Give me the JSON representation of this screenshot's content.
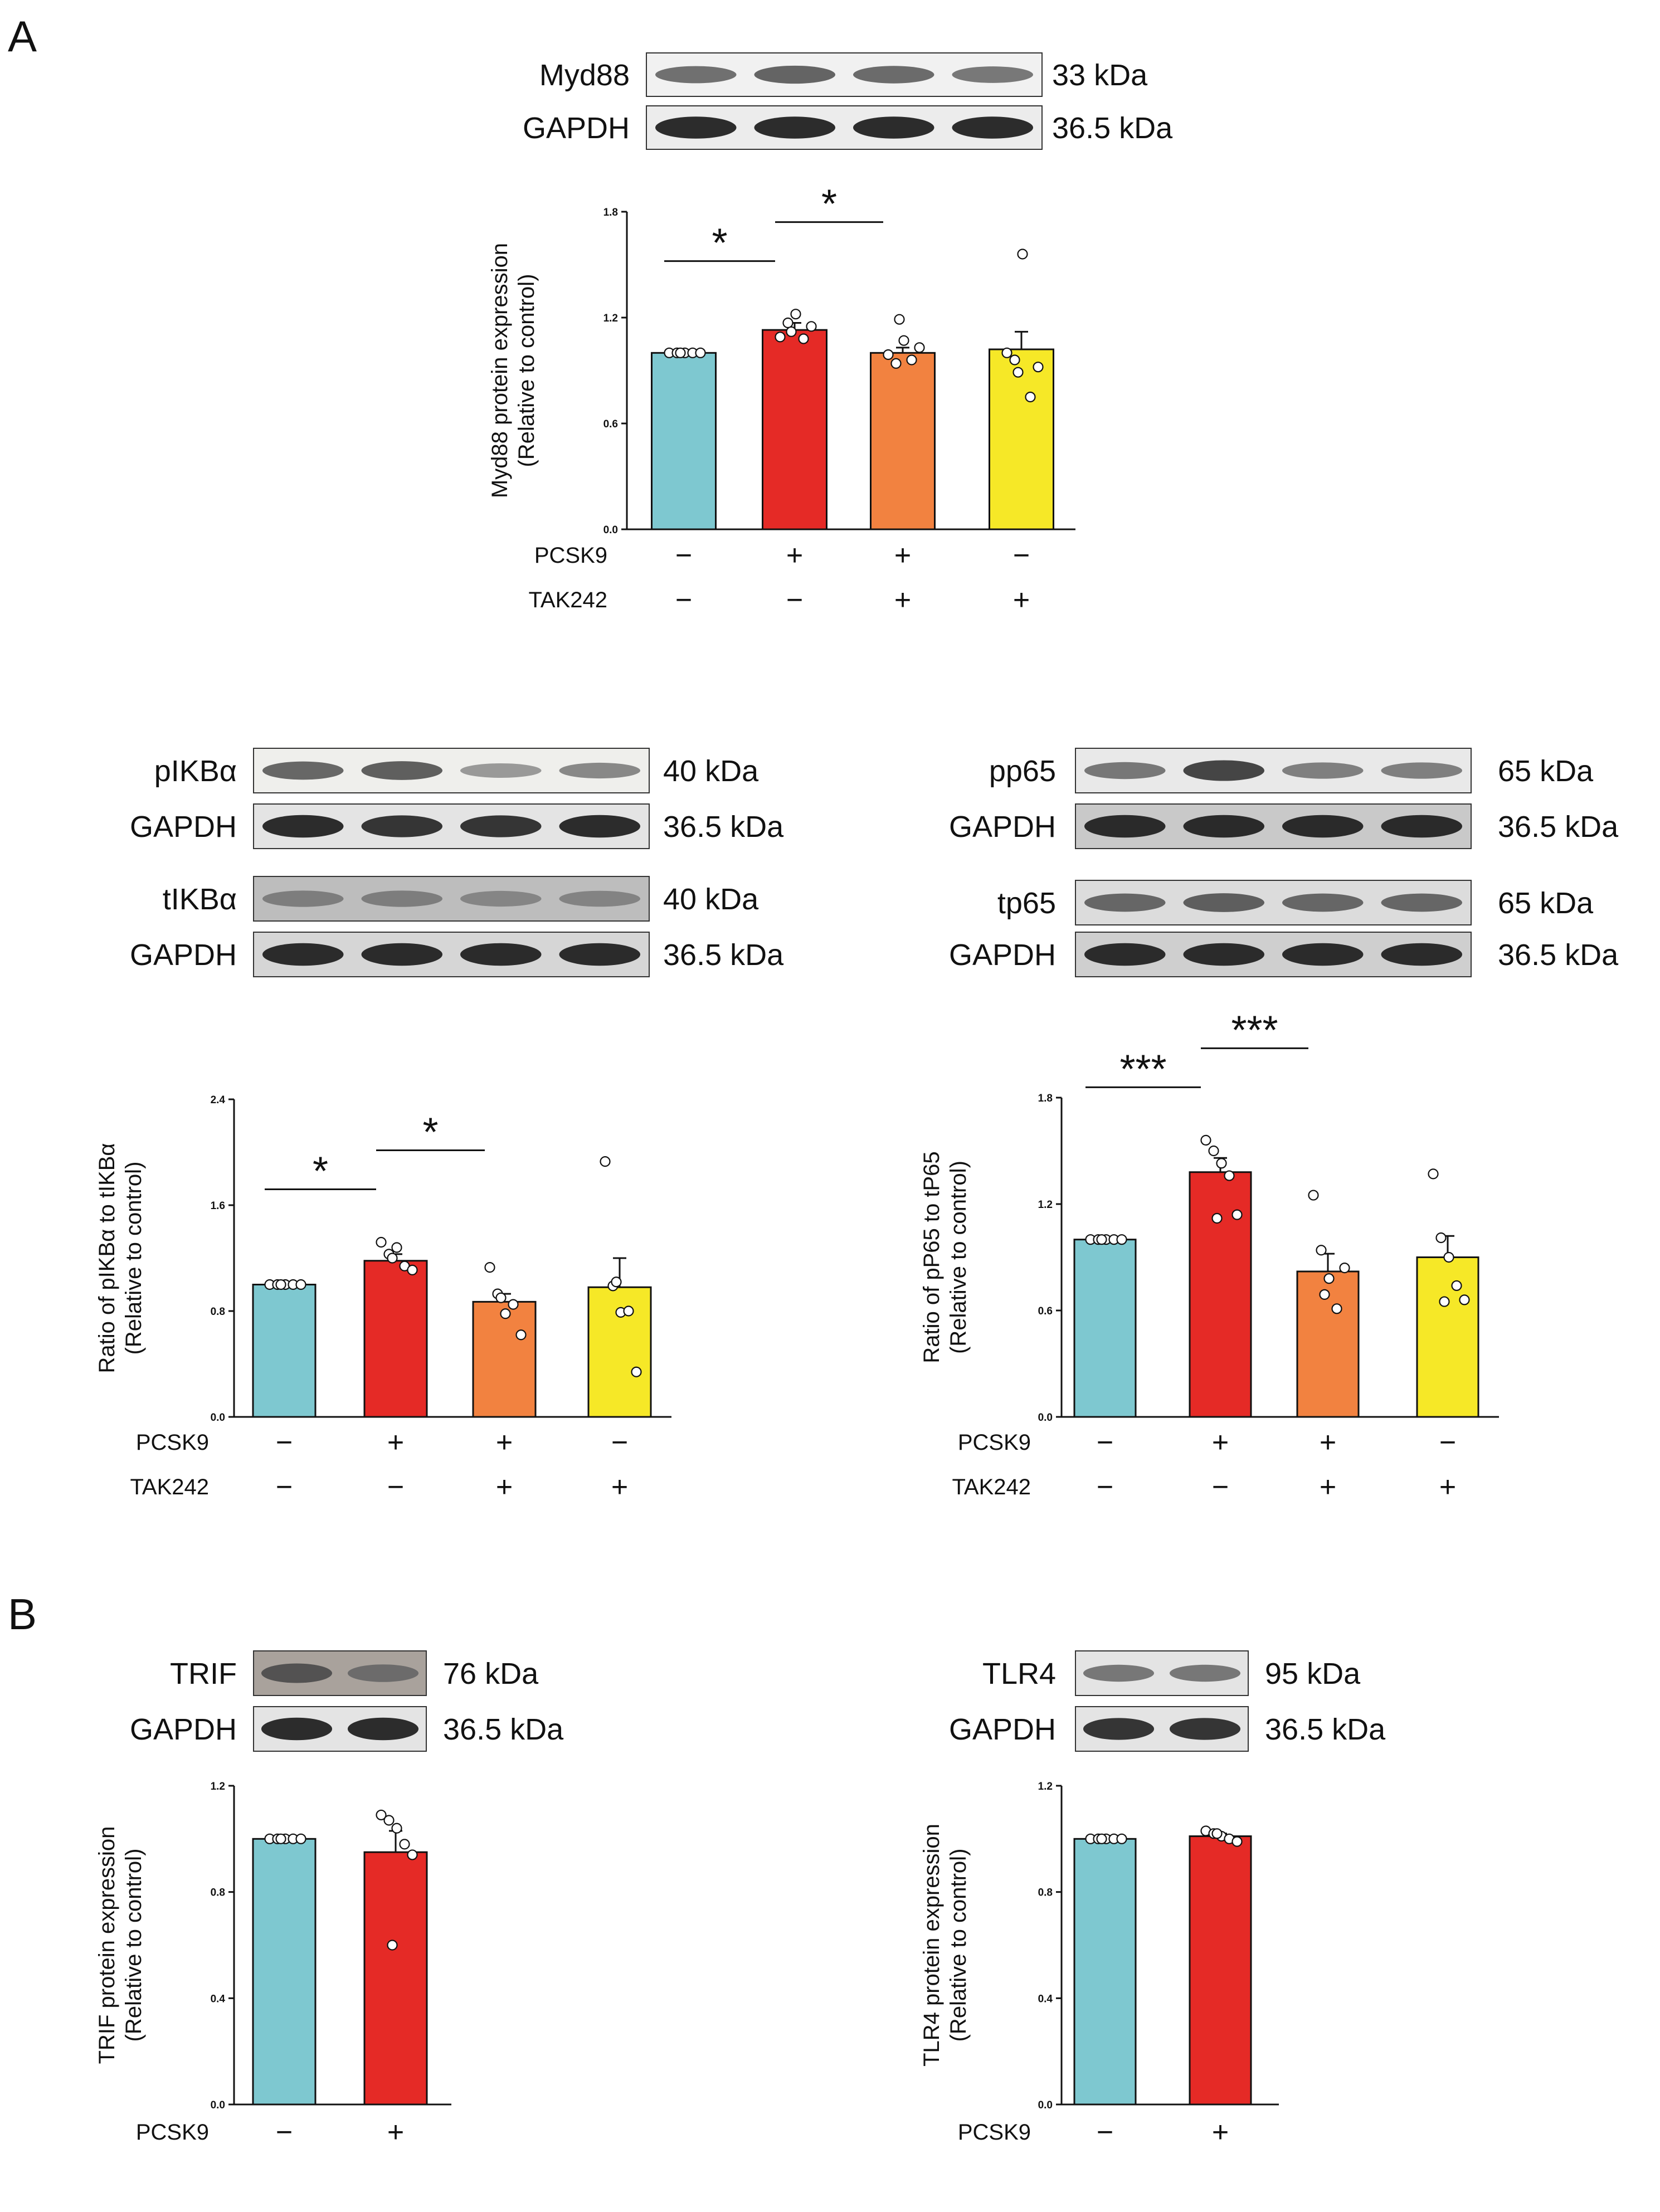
{
  "panels": {
    "A": {
      "letter": "A"
    },
    "B": {
      "letter": "B"
    }
  },
  "colors": {
    "control": "#7ec8d0",
    "pcsk9": "#e52a26",
    "pcsk9_tak242": "#f28240",
    "tak242": "#f6e827",
    "axis": "#111111"
  },
  "blots": [
    {
      "id": "myd88",
      "rows": [
        {
          "label": "Myd88",
          "kda": "33 kDa",
          "tone": "#f1f1f1",
          "lanes": 4,
          "intensity": [
            0.55,
            0.62,
            0.58,
            0.5
          ]
        },
        {
          "label": "GAPDH",
          "kda": "36.5 kDa",
          "tone": "#ececec",
          "lanes": 4,
          "intensity": [
            0.95,
            0.95,
            0.95,
            0.95
          ]
        }
      ]
    },
    {
      "id": "ikb-p",
      "rows": [
        {
          "label": "pIKBα",
          "kda": "40 kDa",
          "tone": "#efefec",
          "lanes": 4,
          "intensity": [
            0.6,
            0.65,
            0.3,
            0.4
          ]
        },
        {
          "label": "GAPDH",
          "kda": "36.5 kDa",
          "tone": "#e4e4e4",
          "lanes": 4,
          "intensity": [
            0.95,
            0.9,
            0.9,
            0.95
          ]
        }
      ]
    },
    {
      "id": "ikb-t",
      "rows": [
        {
          "label": "tIKBα",
          "kda": "40 kDa",
          "tone": "#bdbdbd",
          "lanes": 4,
          "intensity": [
            0.45,
            0.45,
            0.4,
            0.42
          ]
        },
        {
          "label": "GAPDH",
          "kda": "36.5 kDa",
          "tone": "#d6d6d6",
          "lanes": 4,
          "intensity": [
            0.95,
            0.95,
            0.95,
            0.95
          ]
        }
      ]
    },
    {
      "id": "p65-p",
      "rows": [
        {
          "label": "pp65",
          "kda": "65 kDa",
          "tone": "#e9e9e9",
          "lanes": 4,
          "intensity": [
            0.5,
            0.8,
            0.45,
            0.45
          ]
        },
        {
          "label": "GAPDH",
          "kda": "36.5 kDa",
          "tone": "#c9c9c9",
          "lanes": 4,
          "intensity": [
            0.95,
            0.95,
            0.95,
            0.95
          ]
        }
      ]
    },
    {
      "id": "p65-t",
      "rows": [
        {
          "label": "tp65",
          "kda": "65 kDa",
          "tone": "#dcdcdc",
          "lanes": 4,
          "intensity": [
            0.6,
            0.65,
            0.6,
            0.6
          ]
        },
        {
          "label": "GAPDH",
          "kda": "36.5 kDa",
          "tone": "#cfcfcf",
          "lanes": 4,
          "intensity": [
            0.95,
            0.95,
            0.95,
            0.95
          ]
        }
      ]
    },
    {
      "id": "trif",
      "rows": [
        {
          "label": "TRIF",
          "kda": "76 kDa",
          "tone": "#a9a29c",
          "lanes": 2,
          "intensity": [
            0.7,
            0.55
          ]
        },
        {
          "label": "GAPDH",
          "kda": "36.5 kDa",
          "tone": "#e4e4e4",
          "lanes": 2,
          "intensity": [
            0.95,
            0.95
          ]
        }
      ]
    },
    {
      "id": "tlr4",
      "rows": [
        {
          "label": "TLR4",
          "kda": "95 kDa",
          "tone": "#e4e4e4",
          "lanes": 2,
          "intensity": [
            0.5,
            0.5
          ]
        },
        {
          "label": "GAPDH",
          "kda": "36.5 kDa",
          "tone": "#e4e4e4",
          "lanes": 2,
          "intensity": [
            0.9,
            0.9
          ]
        }
      ]
    }
  ],
  "chart_data": [
    {
      "id": "myd88-chart",
      "type": "bar",
      "ylabel": [
        "Myd88 protein expression",
        "(Relative to control)"
      ],
      "ylim": [
        0,
        1.8
      ],
      "yticks": [
        "0.0",
        "0.6",
        "1.2",
        "1.8"
      ],
      "categories": [
        "PCSK9− TAK242−",
        "PCSK9+ TAK242−",
        "PCSK9+ TAK242+",
        "PCSK9− TAK242+"
      ],
      "values": [
        1.0,
        1.13,
        1.0,
        1.02
      ],
      "sem": [
        0.0,
        0.04,
        0.03,
        0.1
      ],
      "points": [
        [
          1.0,
          1.0,
          1.0,
          1.0,
          1.0,
          1.0
        ],
        [
          1.09,
          1.17,
          1.22,
          1.08,
          1.15,
          1.12
        ],
        [
          0.99,
          0.94,
          1.07,
          0.96,
          1.03,
          1.19
        ],
        [
          1.0,
          0.96,
          1.56,
          0.75,
          0.92,
          0.89
        ]
      ],
      "conditions": [
        {
          "name": "PCSK9",
          "signs": [
            "−",
            "+",
            "+",
            "−"
          ]
        },
        {
          "name": "TAK242",
          "signs": [
            "−",
            "−",
            "+",
            "+"
          ]
        }
      ],
      "significance": [
        {
          "from": 0,
          "to": 1,
          "label": "*"
        },
        {
          "from": 1,
          "to": 2,
          "label": "*"
        }
      ]
    },
    {
      "id": "ikb-chart",
      "type": "bar",
      "ylabel": [
        "Ratio of pIKBα to tIKBα",
        "(Relative to control)"
      ],
      "ylim": [
        0,
        2.4
      ],
      "yticks": [
        "0.0",
        "0.8",
        "1.6",
        "2.4"
      ],
      "categories": [
        "PCSK9− TAK242−",
        "PCSK9+ TAK242−",
        "PCSK9+ TAK242+",
        "PCSK9− TAK242+"
      ],
      "values": [
        1.0,
        1.18,
        0.87,
        0.98
      ],
      "sem": [
        0.0,
        0.05,
        0.06,
        0.22
      ],
      "points": [
        [
          1.0,
          1.0,
          1.0,
          1.0,
          1.0,
          1.0
        ],
        [
          1.32,
          1.23,
          1.28,
          1.14,
          1.11,
          1.2
        ],
        [
          1.13,
          0.93,
          0.78,
          0.85,
          0.62,
          0.9
        ],
        [
          1.93,
          0.99,
          0.79,
          0.8,
          0.34,
          1.02
        ]
      ],
      "conditions": [
        {
          "name": "PCSK9",
          "signs": [
            "−",
            "+",
            "+",
            "−"
          ]
        },
        {
          "name": "TAK242",
          "signs": [
            "−",
            "−",
            "+",
            "+"
          ]
        }
      ],
      "significance": [
        {
          "from": 0,
          "to": 1,
          "label": "*"
        },
        {
          "from": 1,
          "to": 2,
          "label": "*"
        }
      ]
    },
    {
      "id": "p65-chart",
      "type": "bar",
      "ylabel": [
        "Ratio of pP65 to tP65",
        "(Relative to control)"
      ],
      "ylim": [
        0,
        1.8
      ],
      "yticks": [
        "0.0",
        "0.6",
        "1.2",
        "1.8"
      ],
      "categories": [
        "PCSK9− TAK242−",
        "PCSK9+ TAK242−",
        "PCSK9+ TAK242+",
        "PCSK9− TAK242+"
      ],
      "values": [
        1.0,
        1.38,
        0.82,
        0.9
      ],
      "sem": [
        0.0,
        0.08,
        0.1,
        0.12
      ],
      "points": [
        [
          1.0,
          1.0,
          1.0,
          1.0,
          1.0,
          1.0
        ],
        [
          1.56,
          1.5,
          1.43,
          1.36,
          1.14,
          1.12
        ],
        [
          1.25,
          0.94,
          0.78,
          0.61,
          0.84,
          0.69
        ],
        [
          1.37,
          1.01,
          0.9,
          0.74,
          0.66,
          0.65
        ]
      ],
      "conditions": [
        {
          "name": "PCSK9",
          "signs": [
            "−",
            "+",
            "+",
            "−"
          ]
        },
        {
          "name": "TAK242",
          "signs": [
            "−",
            "−",
            "+",
            "+"
          ]
        }
      ],
      "significance": [
        {
          "from": 0,
          "to": 1,
          "label": "***"
        },
        {
          "from": 1,
          "to": 2,
          "label": "***"
        }
      ]
    },
    {
      "id": "trif-chart",
      "type": "bar",
      "ylabel": [
        "TRIF protein expression",
        "(Relative to control)"
      ],
      "ylim": [
        0,
        1.2
      ],
      "yticks": [
        "0.0",
        "0.4",
        "0.8",
        "1.2"
      ],
      "categories": [
        "PCSK9−",
        "PCSK9+"
      ],
      "values": [
        1.0,
        0.95
      ],
      "sem": [
        0.0,
        0.08
      ],
      "points": [
        [
          1.0,
          1.0,
          1.0,
          1.0,
          1.0,
          1.0
        ],
        [
          1.09,
          1.07,
          1.04,
          0.98,
          0.94,
          0.6
        ]
      ],
      "conditions": [
        {
          "name": "PCSK9",
          "signs": [
            "−",
            "+"
          ]
        }
      ],
      "significance": []
    },
    {
      "id": "tlr4-chart",
      "type": "bar",
      "ylabel": [
        "TLR4 protein expression",
        "(Relative to control)"
      ],
      "ylim": [
        0,
        1.2
      ],
      "yticks": [
        "0.0",
        "0.4",
        "0.8",
        "1.2"
      ],
      "categories": [
        "PCSK9−",
        "PCSK9+"
      ],
      "values": [
        1.0,
        1.01
      ],
      "sem": [
        0.0,
        0.01
      ],
      "points": [
        [
          1.0,
          1.0,
          1.0,
          1.0,
          1.0,
          1.0
        ],
        [
          1.03,
          1.02,
          1.01,
          1.0,
          0.99,
          1.02
        ]
      ],
      "conditions": [
        {
          "name": "PCSK9",
          "signs": [
            "−",
            "+"
          ]
        }
      ],
      "significance": []
    }
  ]
}
